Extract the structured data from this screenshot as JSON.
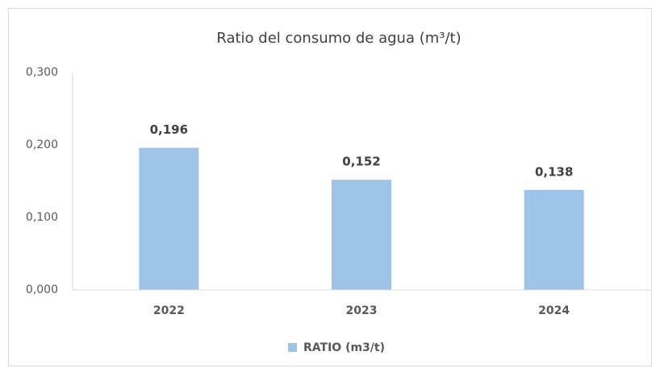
{
  "chart_data": {
    "type": "bar",
    "title": "Ratio del consumo de agua (m³/t)",
    "categories": [
      "2022",
      "2023",
      "2024"
    ],
    "series": [
      {
        "name": "RATIO (m3/t)",
        "color": "#9dc3e6",
        "values": [
          0.196,
          0.152,
          0.138
        ],
        "value_labels": [
          "0,196",
          "0,152",
          "0,138"
        ]
      }
    ],
    "ylim": [
      0,
      0.3
    ],
    "yticks": [
      {
        "value": 0,
        "label": "0,000"
      },
      {
        "value": 0.1,
        "label": "0,100"
      },
      {
        "value": 0.2,
        "label": "0,200"
      },
      {
        "value": 0.3,
        "label": "0,300"
      }
    ],
    "legend": "bottom"
  }
}
